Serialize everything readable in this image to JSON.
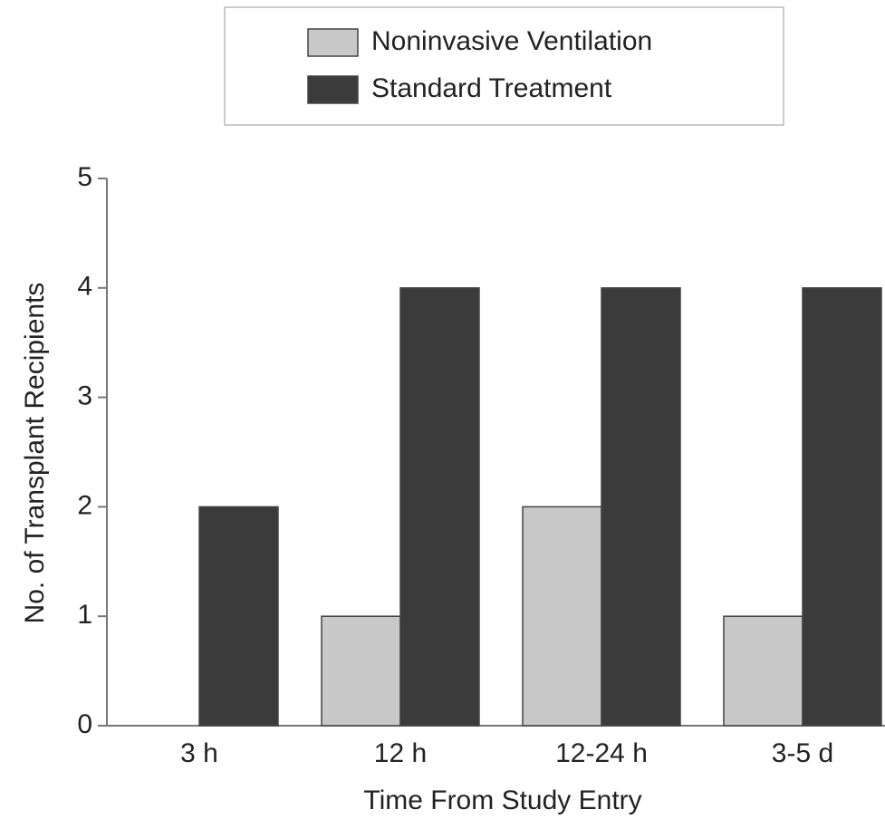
{
  "chart_data": {
    "type": "bar",
    "categories": [
      "3 h",
      "12 h",
      "12-24 h",
      "3-5 d"
    ],
    "series": [
      {
        "name": "Noninvasive Ventilation",
        "color": "#c8c8c8",
        "values": [
          0,
          1,
          2,
          1
        ]
      },
      {
        "name": "Standard Treatment",
        "color": "#3b3b3b",
        "values": [
          2,
          4,
          4,
          4
        ]
      }
    ],
    "xlabel": "Time From Study Entry",
    "ylabel": "No. of Transplant Recipients",
    "ylim": [
      0,
      5
    ],
    "yticks": [
      0,
      1,
      2,
      3,
      4,
      5
    ],
    "grid": false
  }
}
